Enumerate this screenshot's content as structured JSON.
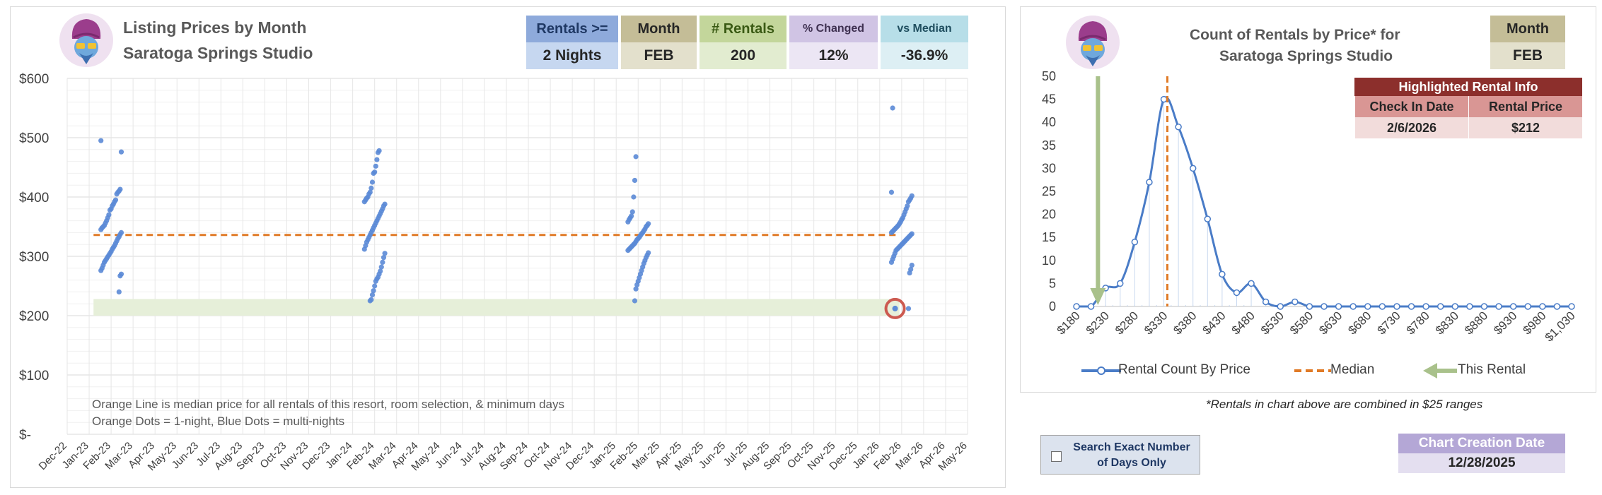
{
  "left": {
    "title_line1": "Listing Prices by Month",
    "title_line2": "Saratoga Springs Studio",
    "stats": [
      {
        "header": "Rentals >=",
        "value": "2 Nights",
        "hcolor": "#8eaadb",
        "vcolor": "#c6d7f0",
        "htext": "#1f3864"
      },
      {
        "header": "Month",
        "value": "FEB",
        "hcolor": "#c4bd97",
        "vcolor": "#e3e0cc",
        "htext": "#262626"
      },
      {
        "header": "# Rentals",
        "value": "200",
        "hcolor": "#c3d69b",
        "vcolor": "#e2ecd0",
        "htext": "#3a5a14"
      },
      {
        "header": "% Changed",
        "value": "12%",
        "hcolor": "#d0c4e4",
        "vcolor": "#ece6f4",
        "htext": "#3f3151"
      },
      {
        "header": "vs Median",
        "value": "-36.9%",
        "hcolor": "#b7dee8",
        "vcolor": "#ddeff4",
        "htext": "#1f4e5f"
      }
    ],
    "note_line1": "Orange Line is median price for all rentals of this resort, room selection, & minimum days",
    "note_line2": "Orange Dots = 1-night, Blue Dots = multi-nights"
  },
  "right": {
    "title_line1": "Count of Rentals by Price* for",
    "title_line2": "Saratoga Springs Studio",
    "month_header": "Month",
    "month_value": "FEB",
    "highlight": {
      "caption": "Highlighted Rental Info",
      "col1_header": "Check In Date",
      "col2_header": "Rental Price",
      "col1_value": "2/6/2026",
      "col2_value": "$212"
    },
    "legend": {
      "series": "Rental Count By Price",
      "median": "Median",
      "this_rental": "This Rental"
    },
    "footnote": "*Rentals in chart above are combined in $25 ranges"
  },
  "controls": {
    "search_label": "Search Exact Number of Days Only",
    "creation_header": "Chart Creation Date",
    "creation_value": "12/28/2025"
  },
  "colors": {
    "median": "#e07a26",
    "dots": "#5b8ad6",
    "band": "#e6efd9",
    "this_rental": "#a9c18b",
    "line": "#4a7cc7",
    "highlight_circle": "#cc5a50"
  },
  "chart_data": [
    {
      "type": "scatter",
      "title": "Listing Prices by Month",
      "subtitle": "Saratoga Springs Studio",
      "x_tick_labels": [
        "Dec-22",
        "Jan-23",
        "Feb-23",
        "Mar-23",
        "Apr-23",
        "May-23",
        "Jun-23",
        "Jul-23",
        "Aug-23",
        "Sep-23",
        "Oct-23",
        "Nov-23",
        "Dec-23",
        "Jan-24",
        "Feb-24",
        "Mar-24",
        "Apr-24",
        "May-24",
        "Jun-24",
        "Jul-24",
        "Aug-24",
        "Sep-24",
        "Oct-24",
        "Nov-24",
        "Dec-24",
        "Jan-25",
        "Feb-25",
        "Mar-25",
        "Apr-25",
        "May-25",
        "Jun-25",
        "Jul-25",
        "Aug-25",
        "Sep-25",
        "Oct-25",
        "Nov-25",
        "Dec-25",
        "Jan-26",
        "Feb-26",
        "Mar-26",
        "Apr-26",
        "May-26"
      ],
      "y_tick_labels": [
        "$-",
        "$100",
        "$200",
        "$300",
        "$400",
        "$500",
        "$600"
      ],
      "ylim": [
        0,
        600
      ],
      "median": 336,
      "highlight_band": [
        200,
        228
      ],
      "highlighted_point": {
        "month_index": 37.7,
        "price": 212
      },
      "groups": [
        {
          "month_index": 2,
          "prices": [
            495,
            476,
            413,
            410,
            408,
            405,
            395,
            392,
            388,
            385,
            380,
            378,
            370,
            365,
            360,
            356,
            352,
            350,
            348,
            345,
            340,
            337,
            333,
            330,
            326,
            322,
            318,
            315,
            312,
            308,
            305,
            302,
            299,
            296,
            293,
            290,
            285,
            280,
            276,
            270,
            267,
            240
          ]
        },
        {
          "month_index": 14,
          "prices": [
            478,
            475,
            463,
            452,
            442,
            440,
            425,
            415,
            408,
            405,
            400,
            398,
            395,
            392,
            388,
            385,
            380,
            376,
            372,
            368,
            364,
            360,
            356,
            352,
            348,
            344,
            340,
            336,
            332,
            328,
            324,
            318,
            312,
            305,
            298,
            290,
            282,
            275,
            270,
            265,
            262,
            258,
            250,
            242,
            235,
            227,
            225
          ]
        },
        {
          "month_index": 26,
          "prices": [
            468,
            428,
            400,
            375,
            368,
            365,
            362,
            358,
            355,
            352,
            350,
            346,
            343,
            340,
            338,
            335,
            332,
            330,
            328,
            325,
            322,
            320,
            318,
            316,
            314,
            312,
            310,
            306,
            302,
            298,
            293,
            288,
            282,
            276,
            270,
            264,
            258,
            252,
            245,
            225
          ]
        },
        {
          "month_index": 38,
          "prices": [
            550,
            408,
            402,
            398,
            395,
            392,
            385,
            380,
            375,
            370,
            365,
            362,
            358,
            355,
            352,
            350,
            348,
            346,
            344,
            342,
            340,
            338,
            336,
            334,
            332,
            330,
            328,
            326,
            324,
            322,
            320,
            318,
            316,
            314,
            312,
            310,
            305,
            300,
            295,
            290,
            285,
            278,
            272,
            212
          ]
        }
      ]
    },
    {
      "type": "line",
      "title": "Count of Rentals by Price* for",
      "subtitle": "Saratoga Springs Studio",
      "series": [
        {
          "name": "Rental Count By Price",
          "x": [
            180,
            205,
            230,
            255,
            280,
            305,
            330,
            355,
            380,
            405,
            430,
            455,
            480,
            505,
            530,
            555,
            580,
            605,
            630,
            655,
            680,
            705,
            730,
            755,
            780,
            805,
            830,
            855,
            880,
            905,
            930,
            955,
            980,
            1005,
            1030
          ],
          "values": [
            0,
            0,
            4,
            5,
            14,
            27,
            45,
            39,
            30,
            19,
            7,
            3,
            5,
            1,
            0,
            1,
            0,
            0,
            0,
            0,
            0,
            0,
            0,
            0,
            0,
            0,
            0,
            0,
            0,
            0,
            0,
            0,
            0,
            0,
            0
          ]
        }
      ],
      "x_tick_labels": [
        "$180",
        "$230",
        "$280",
        "$330",
        "$380",
        "$430",
        "$480",
        "$530",
        "$580",
        "$630",
        "$680",
        "$730",
        "$780",
        "$830",
        "$880",
        "$930",
        "$980",
        "$1,030"
      ],
      "ylim": [
        0,
        50
      ],
      "y_ticks": [
        0,
        5,
        10,
        15,
        20,
        25,
        30,
        35,
        40,
        45,
        50
      ],
      "median": 336,
      "this_rental": 212
    }
  ]
}
